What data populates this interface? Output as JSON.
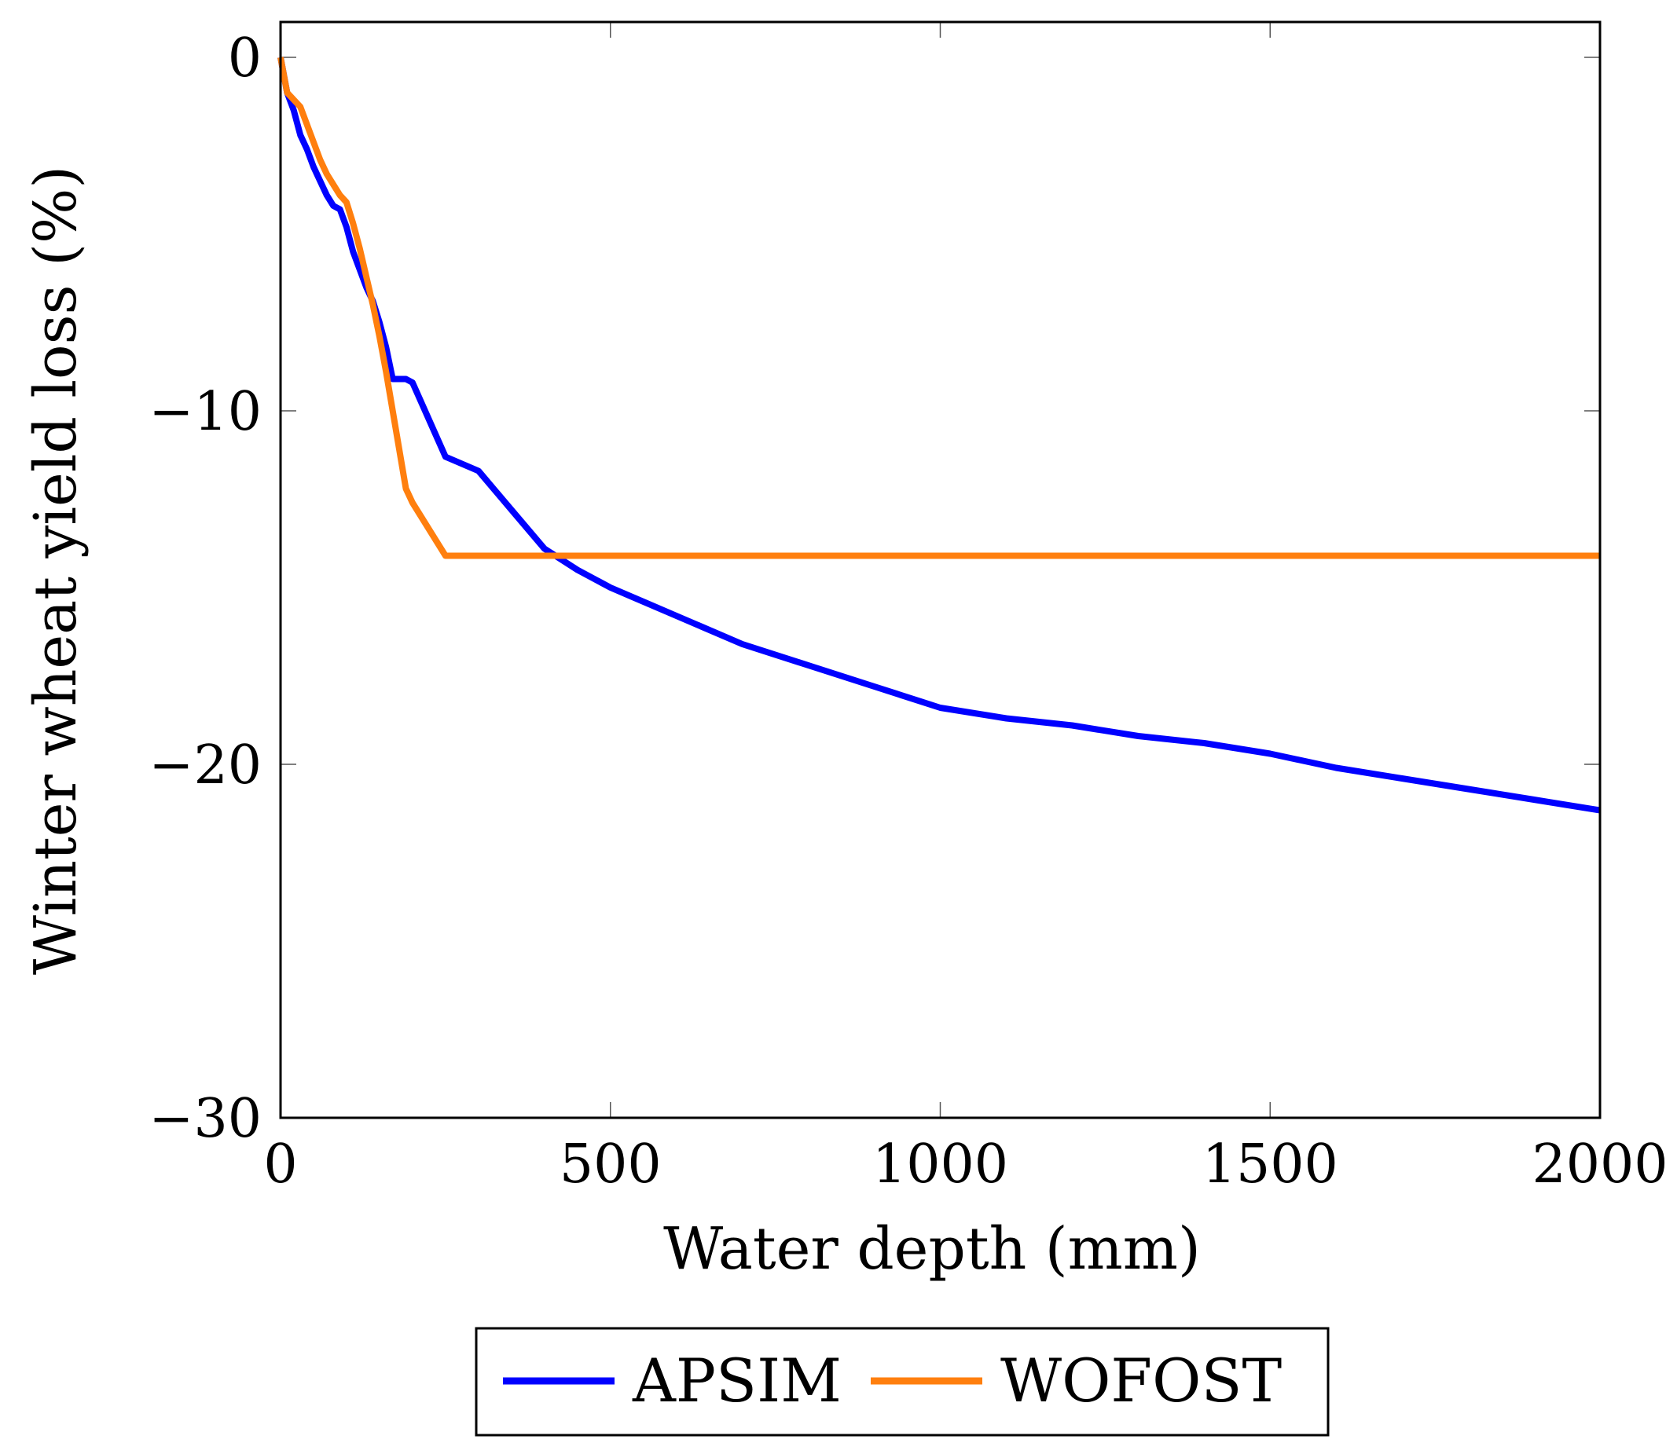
{
  "chart_data": {
    "type": "line",
    "xlabel": "Water depth (mm)",
    "ylabel": "Winter wheat yield loss (%)",
    "xlim": [
      0,
      2000
    ],
    "ylim": [
      -30,
      1
    ],
    "xticks": [
      0,
      500,
      1000,
      1500,
      2000
    ],
    "xtick_labels": [
      "0",
      "500",
      "1000",
      "1500",
      "2000"
    ],
    "yticks": [
      0,
      -10,
      -20,
      -30
    ],
    "ytick_labels": [
      "0",
      "−10",
      "−20",
      "−30"
    ],
    "grid": false,
    "legend_position": "bottom-center",
    "series": [
      {
        "name": "APSIM",
        "color": "#0000ff",
        "x": [
          0,
          10,
          20,
          30,
          40,
          50,
          60,
          70,
          80,
          90,
          100,
          110,
          120,
          130,
          140,
          150,
          160,
          170,
          180,
          190,
          200,
          250,
          300,
          350,
          400,
          450,
          500,
          600,
          700,
          800,
          900,
          1000,
          1100,
          1200,
          1300,
          1400,
          1500,
          1600,
          1700,
          1800,
          1900,
          2000
        ],
        "y": [
          0,
          -1.0,
          -1.5,
          -2.2,
          -2.6,
          -3.1,
          -3.5,
          -3.9,
          -4.2,
          -4.3,
          -4.8,
          -5.5,
          -6.0,
          -6.5,
          -6.9,
          -7.5,
          -8.2,
          -9.1,
          -9.1,
          -9.1,
          -9.2,
          -11.3,
          -11.7,
          -12.8,
          -13.9,
          -14.5,
          -15.0,
          -15.8,
          -16.6,
          -17.2,
          -17.8,
          -18.4,
          -18.7,
          -18.9,
          -19.2,
          -19.4,
          -19.7,
          -20.1,
          -20.4,
          -20.7,
          -21.0,
          -21.3
        ]
      },
      {
        "name": "WOFOST",
        "color": "#ff7f0e",
        "x": [
          0,
          10,
          20,
          30,
          40,
          50,
          60,
          70,
          80,
          90,
          100,
          110,
          120,
          130,
          140,
          150,
          160,
          170,
          180,
          190,
          200,
          250,
          500,
          1000,
          1500,
          2000
        ],
        "y": [
          0,
          -1.0,
          -1.2,
          -1.4,
          -1.9,
          -2.4,
          -2.9,
          -3.3,
          -3.6,
          -3.9,
          -4.1,
          -4.7,
          -5.4,
          -6.2,
          -7.0,
          -7.9,
          -8.9,
          -10.0,
          -11.1,
          -12.2,
          -12.6,
          -14.1,
          -14.1,
          -14.1,
          -14.1,
          -14.1
        ]
      }
    ]
  }
}
